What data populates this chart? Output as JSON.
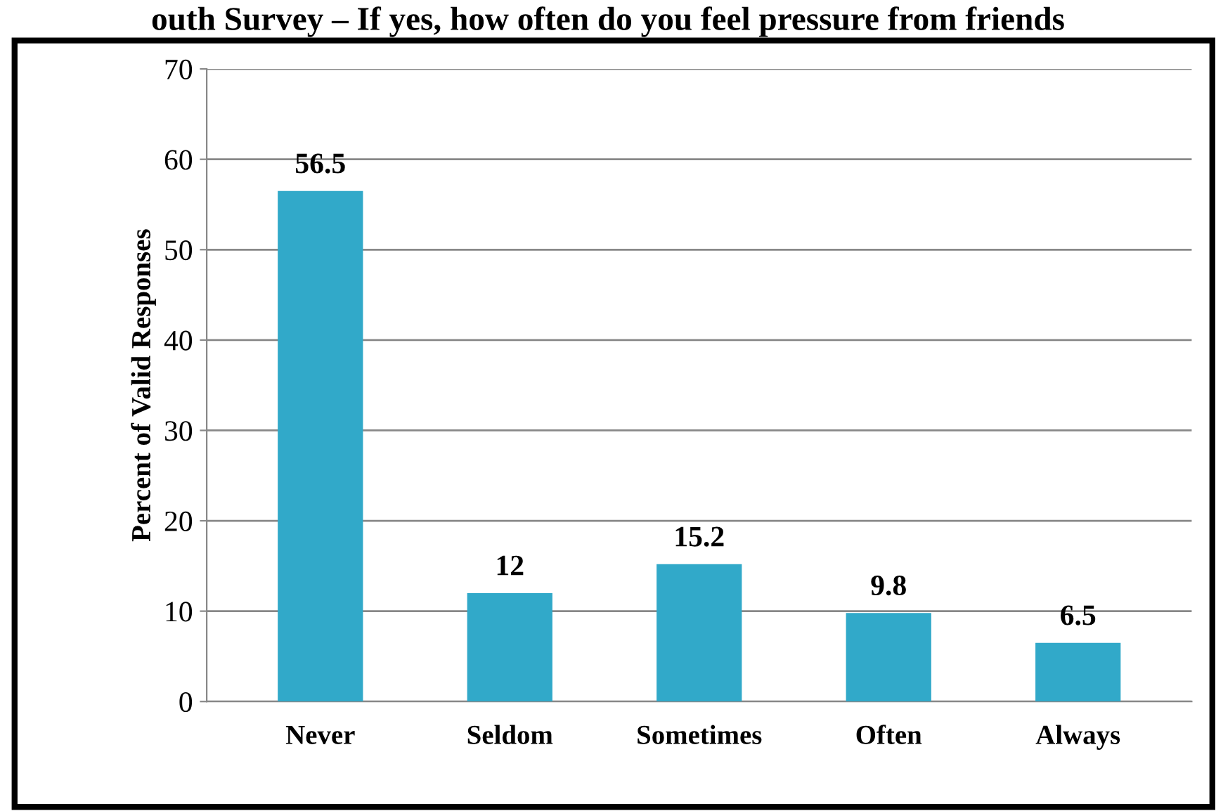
{
  "chart_data": {
    "type": "bar",
    "title": "outh Survey – If yes, how often do you feel pressure from friends",
    "ylabel": "Percent of Valid Responses",
    "categories": [
      "Never",
      "Seldom",
      "Sometimes",
      "Often",
      "Always"
    ],
    "values": [
      56.5,
      12,
      15.2,
      9.8,
      6.5
    ],
    "color": "#31a9c9",
    "ylim": [
      0,
      70
    ],
    "yticks": [
      0,
      10,
      20,
      30,
      40,
      50,
      60,
      70
    ],
    "grid": "y",
    "data_labels": true
  }
}
